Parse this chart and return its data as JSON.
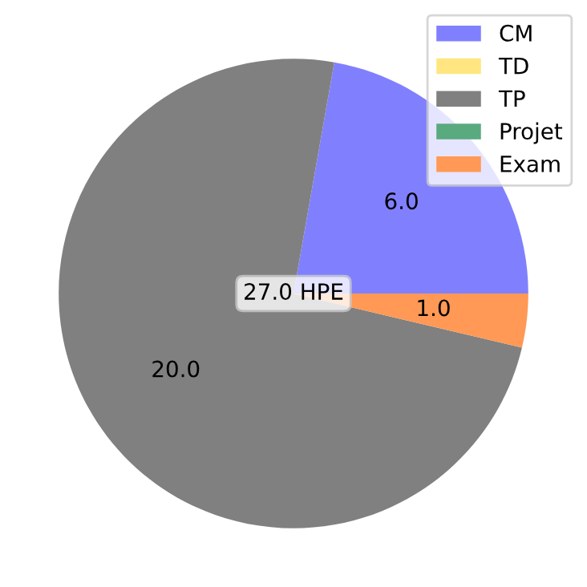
{
  "chart_data": {
    "type": "pie",
    "categories": [
      "CM",
      "TD",
      "TP",
      "Projet",
      "Exam"
    ],
    "values": [
      6.0,
      0,
      20.0,
      0,
      1.0
    ],
    "value_labels": [
      "6.0",
      null,
      "20.0",
      null,
      "1.0"
    ],
    "colors": [
      "#8080ff",
      "#ffe680",
      "#808080",
      "#5aaa80",
      "#ff9955"
    ],
    "annotations": [
      "27.0 HPE"
    ],
    "legend": "top right"
  }
}
